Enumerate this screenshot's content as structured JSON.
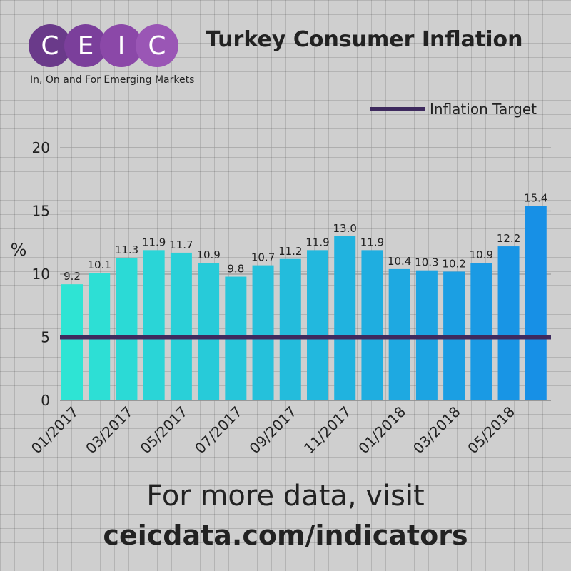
{
  "logo": {
    "letters": [
      "C",
      "E",
      "I",
      "C"
    ],
    "colors": [
      "#6a3a8a",
      "#7b3f9b",
      "#8b48a8",
      "#9a56b5"
    ],
    "tagline": "In, On and For Emerging Markets"
  },
  "title": "Turkey Consumer Inflation",
  "legend": {
    "label": "Inflation Target",
    "color": "#3e2a5e"
  },
  "chart_data": {
    "type": "bar",
    "title": "Turkey Consumer Inflation",
    "ylabel": "%",
    "xlabel": "",
    "ylim": [
      0,
      20
    ],
    "yticks": [
      0,
      5,
      10,
      15,
      20
    ],
    "grid": true,
    "legend_position": "top-right",
    "categories": [
      "01/2017",
      "02/2017",
      "03/2017",
      "04/2017",
      "05/2017",
      "06/2017",
      "07/2017",
      "08/2017",
      "09/2017",
      "10/2017",
      "11/2017",
      "12/2017",
      "01/2018",
      "02/2018",
      "03/2018",
      "04/2018",
      "05/2018",
      "06/2018"
    ],
    "tick_labels": [
      "01/2017",
      "03/2017",
      "05/2017",
      "07/2017",
      "09/2017",
      "11/2017",
      "01/2018",
      "03/2018",
      "05/2018"
    ],
    "values": [
      9.2,
      10.1,
      11.3,
      11.9,
      11.7,
      10.9,
      9.8,
      10.7,
      11.2,
      11.9,
      13.0,
      11.9,
      10.4,
      10.3,
      10.2,
      10.9,
      12.2,
      15.4
    ],
    "data_labels": [
      "9.2",
      "10.1",
      "11.3",
      "11.9",
      "11.7",
      "10.9",
      "9.8",
      "10.7",
      "11.2",
      "11.9",
      "13.0",
      "11.9",
      "10.4",
      "10.3",
      "10.2",
      "10.9",
      "12.2",
      "15.4"
    ],
    "target_line": {
      "name": "Inflation Target",
      "value": 5,
      "color": "#3e2a5e"
    },
    "bar_color_start": "#2ee4d4",
    "bar_color_end": "#1790e6"
  },
  "footer": {
    "line1": "For more data, visit",
    "line2": "ceicdata.com/indicators"
  }
}
